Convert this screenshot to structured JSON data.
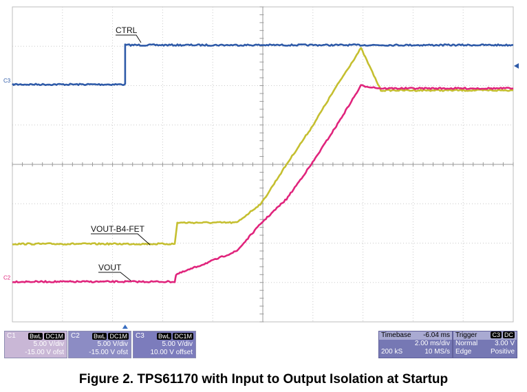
{
  "chart_data": {
    "type": "line",
    "title": "",
    "xlabel": "",
    "ylabel": "",
    "xlim": [
      -6.04,
      14.13
    ],
    "ylim": [
      -4,
      4
    ],
    "x_unit": "ms",
    "y_unit": "div",
    "grid": true,
    "series": [
      {
        "name": "CTRL",
        "channel": "C3",
        "color": "#2e5aa8",
        "x": [
          -6.04,
          -1.5,
          -1.5,
          14.13
        ],
        "y": [
          2.03,
          2.03,
          3.03,
          3.03
        ]
      },
      {
        "name": "VOUT-B4-FET",
        "channel": "C1",
        "color": "#c5bf30",
        "x": [
          -6.04,
          0.5,
          0.6,
          3.0,
          4.0,
          5.0,
          6.0,
          7.0,
          8.0,
          8.8,
          14.13
        ],
        "y": [
          -2.02,
          -2.02,
          -1.48,
          -1.48,
          -0.98,
          0.0,
          0.93,
          1.97,
          2.95,
          1.88,
          1.88
        ]
      },
      {
        "name": "VOUT",
        "channel": "C2",
        "color": "#e0247c",
        "x": [
          -6.04,
          0.5,
          0.55,
          1.8,
          3.0,
          4.0,
          5.0,
          6.0,
          7.0,
          8.0,
          8.8,
          14.13
        ],
        "y": [
          -2.98,
          -2.98,
          -2.8,
          -2.5,
          -2.2,
          -1.48,
          -0.88,
          0.0,
          0.97,
          2.0,
          1.93,
          1.93
        ]
      }
    ],
    "labels": [
      {
        "text": "CTRL",
        "series": "CTRL"
      },
      {
        "text": "VOUT-B4-FET",
        "series": "VOUT-B4-FET"
      },
      {
        "text": "VOUT",
        "series": "VOUT"
      }
    ],
    "ref_markers": [
      "C3",
      "C2"
    ]
  },
  "channels": [
    {
      "name": "C1",
      "tags": [
        "BwL",
        "DC1M"
      ],
      "vdiv": "5.00 V/div",
      "offset": "-15.00 V ofst",
      "color": "#c5bf30",
      "bg": "#c9b7d6"
    },
    {
      "name": "C2",
      "tags": [
        "BwL",
        "DC1M"
      ],
      "vdiv": "5.00 V/div",
      "offset": "-15.00 V ofst",
      "color": "#e0247c",
      "bg": "#8c8cc4"
    },
    {
      "name": "C3",
      "tags": [
        "BwL",
        "DC1M"
      ],
      "vdiv": "5.00 V/div",
      "offset": "10.00 V offset",
      "color": "#2e5aa8",
      "bg": "#7c7cbc"
    }
  ],
  "timebase": {
    "label": "Timebase",
    "value": "-6.04 ms",
    "div": "2.00 ms/div",
    "samples": "200 kS",
    "rate": "10 MS/s"
  },
  "trigger": {
    "label": "Trigger",
    "tag_ch": "C3",
    "tag_dc": "DC",
    "mode": "Normal",
    "level": "3.00 V",
    "type": "Edge",
    "slope": "Positive"
  },
  "caption": "Figure 2. TPS61170 with Input to Output Isolation at Startup"
}
